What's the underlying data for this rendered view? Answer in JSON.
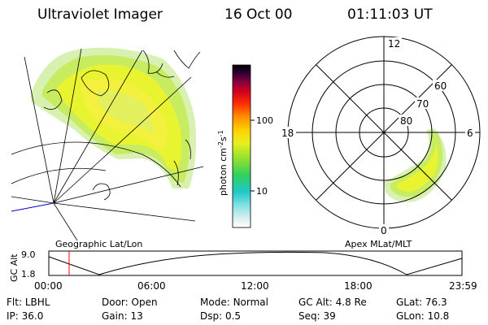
{
  "header": {
    "title": "Ultraviolet Imager",
    "date": "16 Oct 00",
    "time": "01:11:03 UT"
  },
  "colorbar": {
    "label": "photon cm",
    "label_sup1": "-2",
    "label_mid": "s",
    "label_sup2": "-1",
    "ticks": [
      "100",
      "10"
    ]
  },
  "map_left": {
    "caption": "Geographic Lat/Lon"
  },
  "map_right": {
    "caption": "Apex MLat/MLT",
    "mlt_labels": {
      "top": "12",
      "left": "18",
      "right": "6",
      "bottom": "0"
    },
    "lat_labels": [
      "60",
      "70",
      "80"
    ]
  },
  "altitude_plot": {
    "ylabel": "GC Alt",
    "ytick_top": "9.0",
    "ytick_bottom": "1.8",
    "xticks": [
      "00:00",
      "06:00",
      "12:00",
      "18:00",
      "23:59"
    ],
    "current_time_marker_hour": 1.18,
    "colors": {
      "marker": "#ff0000",
      "curve": "#000000"
    }
  },
  "info": {
    "row1": [
      {
        "key": "Flt:",
        "value": "LBHL"
      },
      {
        "key": "Door:",
        "value": "Open"
      },
      {
        "key": "Mode:",
        "value": "Normal"
      },
      {
        "key": "GC Alt:",
        "value": "4.8 Re"
      },
      {
        "key": "GLat:",
        "value": "76.3"
      }
    ],
    "row2": [
      {
        "key": "IP:",
        "value": "36.0"
      },
      {
        "key": "Gain:",
        "value": "13"
      },
      {
        "key": "Dsp:",
        "value": "0.5"
      },
      {
        "key": "Seq:",
        "value": "39"
      },
      {
        "key": "GLon:",
        "value": "10.8"
      }
    ]
  },
  "colors": {
    "colorbar": [
      "#ffffff",
      "#d8eef0",
      "#7fe0e0",
      "#20c8c8",
      "#30d060",
      "#90e030",
      "#e8f020",
      "#ffd000",
      "#ff9000",
      "#ff3000",
      "#d00020",
      "#800040",
      "#300030",
      "#000000"
    ]
  }
}
